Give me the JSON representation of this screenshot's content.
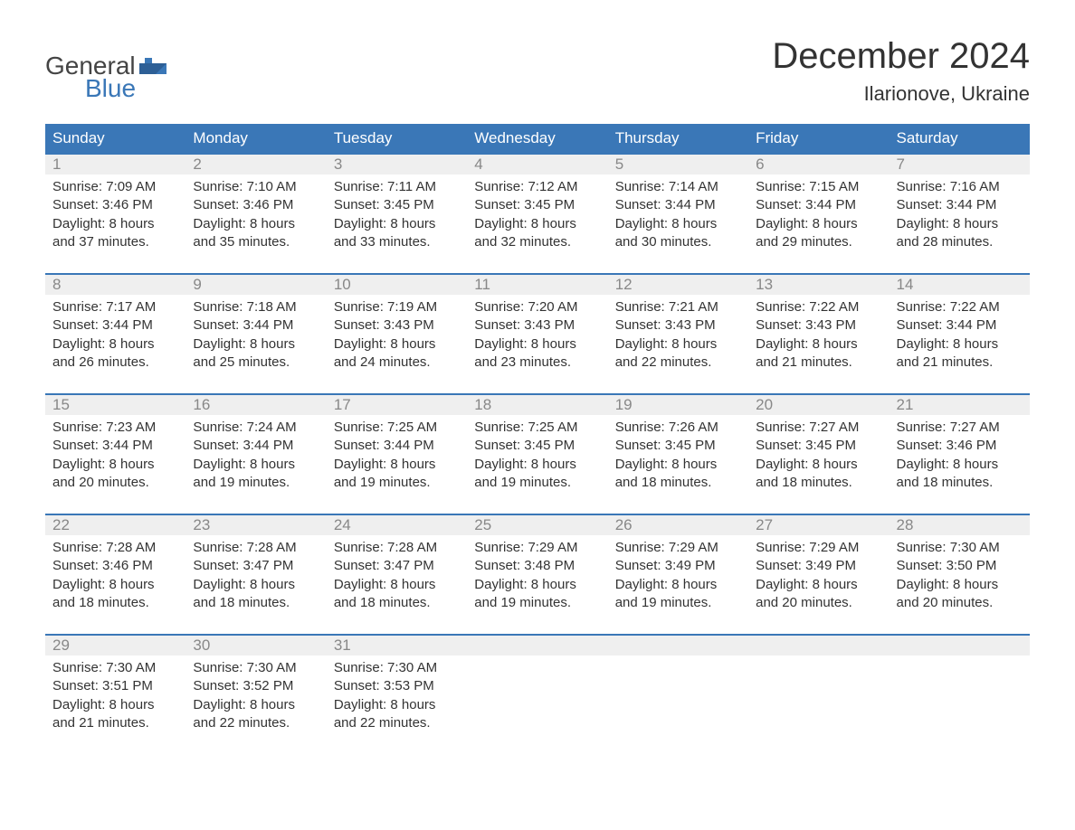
{
  "colors": {
    "brand_blue": "#3a77b7",
    "header_bg": "#3a77b7",
    "header_text": "#ffffff",
    "daynum_bg": "#efefef",
    "daynum_text": "#888888",
    "body_text": "#333333",
    "page_bg": "#ffffff",
    "week_border": "#3a77b7"
  },
  "typography": {
    "title_fontsize": 40,
    "subtitle_fontsize": 22,
    "dow_fontsize": 17,
    "daynum_fontsize": 17,
    "body_fontsize": 15,
    "font_family": "Arial"
  },
  "logo": {
    "word1": "General",
    "word2": "Blue"
  },
  "title": "December 2024",
  "subtitle": "Ilarionove, Ukraine",
  "dow": [
    "Sunday",
    "Monday",
    "Tuesday",
    "Wednesday",
    "Thursday",
    "Friday",
    "Saturday"
  ],
  "calendar": {
    "label_sunrise": "Sunrise:",
    "label_sunset": "Sunset:",
    "label_daylight": "Daylight:",
    "weeks": [
      [
        {
          "n": "1",
          "sunrise": "7:09 AM",
          "sunset": "3:46 PM",
          "dl1": "8 hours",
          "dl2": "and 37 minutes."
        },
        {
          "n": "2",
          "sunrise": "7:10 AM",
          "sunset": "3:46 PM",
          "dl1": "8 hours",
          "dl2": "and 35 minutes."
        },
        {
          "n": "3",
          "sunrise": "7:11 AM",
          "sunset": "3:45 PM",
          "dl1": "8 hours",
          "dl2": "and 33 minutes."
        },
        {
          "n": "4",
          "sunrise": "7:12 AM",
          "sunset": "3:45 PM",
          "dl1": "8 hours",
          "dl2": "and 32 minutes."
        },
        {
          "n": "5",
          "sunrise": "7:14 AM",
          "sunset": "3:44 PM",
          "dl1": "8 hours",
          "dl2": "and 30 minutes."
        },
        {
          "n": "6",
          "sunrise": "7:15 AM",
          "sunset": "3:44 PM",
          "dl1": "8 hours",
          "dl2": "and 29 minutes."
        },
        {
          "n": "7",
          "sunrise": "7:16 AM",
          "sunset": "3:44 PM",
          "dl1": "8 hours",
          "dl2": "and 28 minutes."
        }
      ],
      [
        {
          "n": "8",
          "sunrise": "7:17 AM",
          "sunset": "3:44 PM",
          "dl1": "8 hours",
          "dl2": "and 26 minutes."
        },
        {
          "n": "9",
          "sunrise": "7:18 AM",
          "sunset": "3:44 PM",
          "dl1": "8 hours",
          "dl2": "and 25 minutes."
        },
        {
          "n": "10",
          "sunrise": "7:19 AM",
          "sunset": "3:43 PM",
          "dl1": "8 hours",
          "dl2": "and 24 minutes."
        },
        {
          "n": "11",
          "sunrise": "7:20 AM",
          "sunset": "3:43 PM",
          "dl1": "8 hours",
          "dl2": "and 23 minutes."
        },
        {
          "n": "12",
          "sunrise": "7:21 AM",
          "sunset": "3:43 PM",
          "dl1": "8 hours",
          "dl2": "and 22 minutes."
        },
        {
          "n": "13",
          "sunrise": "7:22 AM",
          "sunset": "3:43 PM",
          "dl1": "8 hours",
          "dl2": "and 21 minutes."
        },
        {
          "n": "14",
          "sunrise": "7:22 AM",
          "sunset": "3:44 PM",
          "dl1": "8 hours",
          "dl2": "and 21 minutes."
        }
      ],
      [
        {
          "n": "15",
          "sunrise": "7:23 AM",
          "sunset": "3:44 PM",
          "dl1": "8 hours",
          "dl2": "and 20 minutes."
        },
        {
          "n": "16",
          "sunrise": "7:24 AM",
          "sunset": "3:44 PM",
          "dl1": "8 hours",
          "dl2": "and 19 minutes."
        },
        {
          "n": "17",
          "sunrise": "7:25 AM",
          "sunset": "3:44 PM",
          "dl1": "8 hours",
          "dl2": "and 19 minutes."
        },
        {
          "n": "18",
          "sunrise": "7:25 AM",
          "sunset": "3:45 PM",
          "dl1": "8 hours",
          "dl2": "and 19 minutes."
        },
        {
          "n": "19",
          "sunrise": "7:26 AM",
          "sunset": "3:45 PM",
          "dl1": "8 hours",
          "dl2": "and 18 minutes."
        },
        {
          "n": "20",
          "sunrise": "7:27 AM",
          "sunset": "3:45 PM",
          "dl1": "8 hours",
          "dl2": "and 18 minutes."
        },
        {
          "n": "21",
          "sunrise": "7:27 AM",
          "sunset": "3:46 PM",
          "dl1": "8 hours",
          "dl2": "and 18 minutes."
        }
      ],
      [
        {
          "n": "22",
          "sunrise": "7:28 AM",
          "sunset": "3:46 PM",
          "dl1": "8 hours",
          "dl2": "and 18 minutes."
        },
        {
          "n": "23",
          "sunrise": "7:28 AM",
          "sunset": "3:47 PM",
          "dl1": "8 hours",
          "dl2": "and 18 minutes."
        },
        {
          "n": "24",
          "sunrise": "7:28 AM",
          "sunset": "3:47 PM",
          "dl1": "8 hours",
          "dl2": "and 18 minutes."
        },
        {
          "n": "25",
          "sunrise": "7:29 AM",
          "sunset": "3:48 PM",
          "dl1": "8 hours",
          "dl2": "and 19 minutes."
        },
        {
          "n": "26",
          "sunrise": "7:29 AM",
          "sunset": "3:49 PM",
          "dl1": "8 hours",
          "dl2": "and 19 minutes."
        },
        {
          "n": "27",
          "sunrise": "7:29 AM",
          "sunset": "3:49 PM",
          "dl1": "8 hours",
          "dl2": "and 20 minutes."
        },
        {
          "n": "28",
          "sunrise": "7:30 AM",
          "sunset": "3:50 PM",
          "dl1": "8 hours",
          "dl2": "and 20 minutes."
        }
      ],
      [
        {
          "n": "29",
          "sunrise": "7:30 AM",
          "sunset": "3:51 PM",
          "dl1": "8 hours",
          "dl2": "and 21 minutes."
        },
        {
          "n": "30",
          "sunrise": "7:30 AM",
          "sunset": "3:52 PM",
          "dl1": "8 hours",
          "dl2": "and 22 minutes."
        },
        {
          "n": "31",
          "sunrise": "7:30 AM",
          "sunset": "3:53 PM",
          "dl1": "8 hours",
          "dl2": "and 22 minutes."
        },
        {
          "empty": true
        },
        {
          "empty": true
        },
        {
          "empty": true
        },
        {
          "empty": true
        }
      ]
    ]
  }
}
